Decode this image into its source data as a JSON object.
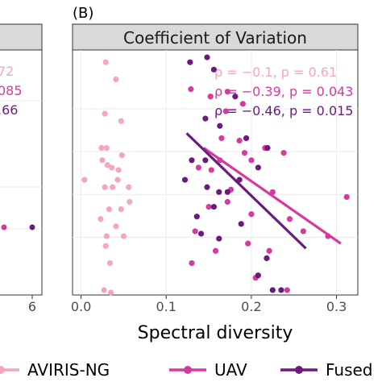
{
  "panel_letter": "(B)",
  "left_panel_fragments": {
    "annotations": [
      "72",
      "085",
      ".66"
    ],
    "tick_label": "6"
  },
  "chart_data": {
    "type": "scatter",
    "title": "Coefficient of Variation",
    "xlabel": "Spectral diversity",
    "ylabel": "",
    "xlim": [
      -0.01,
      0.325
    ],
    "ylim": [
      0,
      1
    ],
    "x_ticks": [
      "0.0",
      "0.1",
      "0.2",
      "0.3"
    ],
    "x_tick_values": [
      0.0,
      0.1,
      0.2,
      0.3
    ],
    "grid": true,
    "legend_placement": "bottom",
    "series": [
      {
        "name": "AVIRIS-NG",
        "color": "#f4a6c1",
        "points": [
          [
            0.029,
            0.95
          ],
          [
            0.041,
            0.88
          ],
          [
            0.028,
            0.74
          ],
          [
            0.047,
            0.71
          ],
          [
            0.024,
            0.6
          ],
          [
            0.03,
            0.6
          ],
          [
            0.048,
            0.57
          ],
          [
            0.025,
            0.55
          ],
          [
            0.031,
            0.53
          ],
          [
            0.036,
            0.52
          ],
          [
            0.044,
            0.51
          ],
          [
            0.004,
            0.47
          ],
          [
            0.043,
            0.47
          ],
          [
            0.028,
            0.44
          ],
          [
            0.037,
            0.44
          ],
          [
            0.056,
            0.44
          ],
          [
            0.057,
            0.38
          ],
          [
            0.033,
            0.35
          ],
          [
            0.047,
            0.35
          ],
          [
            0.023,
            0.31
          ],
          [
            0.041,
            0.28
          ],
          [
            0.03,
            0.24
          ],
          [
            0.05,
            0.24
          ],
          [
            0.029,
            0.2
          ],
          [
            0.034,
            0.13
          ],
          [
            0.027,
            0.02
          ],
          [
            0.035,
            0.01
          ]
        ],
        "fit": {
          "x": [],
          "y": []
        },
        "stat_label": "ρ = −0.1, p = 0.61"
      },
      {
        "name": "UAV",
        "color": "#d63a9e",
        "points": [
          [
            0.129,
            0.84
          ],
          [
            0.172,
            0.83
          ],
          [
            0.152,
            0.81
          ],
          [
            0.19,
            0.78
          ],
          [
            0.17,
            0.75
          ],
          [
            0.165,
            0.64
          ],
          [
            0.186,
            0.63
          ],
          [
            0.216,
            0.6
          ],
          [
            0.192,
            0.58
          ],
          [
            0.238,
            0.58
          ],
          [
            0.163,
            0.55
          ],
          [
            0.2,
            0.55
          ],
          [
            0.138,
            0.52
          ],
          [
            0.153,
            0.51
          ],
          [
            0.176,
            0.43
          ],
          [
            0.225,
            0.42
          ],
          [
            0.312,
            0.4
          ],
          [
            0.172,
            0.38
          ],
          [
            0.15,
            0.36
          ],
          [
            0.2,
            0.33
          ],
          [
            0.245,
            0.31
          ],
          [
            0.134,
            0.26
          ],
          [
            0.261,
            0.26
          ],
          [
            0.29,
            0.24
          ],
          [
            0.196,
            0.21
          ],
          [
            0.158,
            0.18
          ],
          [
            0.221,
            0.18
          ],
          [
            0.13,
            0.13
          ],
          [
            0.205,
            0.07
          ],
          [
            0.242,
            0.02
          ]
        ],
        "fit": {
          "x": [
            0.144,
            0.305
          ],
          "y": [
            0.6,
            0.21
          ]
        },
        "stat_label": "ρ = −0.39, p = 0.043"
      },
      {
        "name": "Fused",
        "color": "#6b1a7e",
        "points": [
          [
            0.148,
            0.97
          ],
          [
            0.128,
            0.95
          ],
          [
            0.156,
            0.92
          ],
          [
            0.181,
            0.81
          ],
          [
            0.146,
            0.72
          ],
          [
            0.163,
            0.69
          ],
          [
            0.194,
            0.64
          ],
          [
            0.219,
            0.6
          ],
          [
            0.13,
            0.55
          ],
          [
            0.146,
            0.55
          ],
          [
            0.208,
            0.52
          ],
          [
            0.122,
            0.47
          ],
          [
            0.186,
            0.47
          ],
          [
            0.148,
            0.44
          ],
          [
            0.162,
            0.42
          ],
          [
            0.172,
            0.42
          ],
          [
            0.156,
            0.36
          ],
          [
            0.136,
            0.32
          ],
          [
            0.188,
            0.29
          ],
          [
            0.141,
            0.25
          ],
          [
            0.162,
            0.23
          ],
          [
            0.218,
            0.15
          ],
          [
            0.208,
            0.08
          ],
          [
            0.225,
            0.02
          ],
          [
            0.235,
            0.02
          ]
        ],
        "fit": {
          "x": [
            0.124,
            0.264
          ],
          "y": [
            0.66,
            0.19
          ]
        },
        "stat_label": "ρ = −0.46, p = 0.015"
      }
    ]
  }
}
